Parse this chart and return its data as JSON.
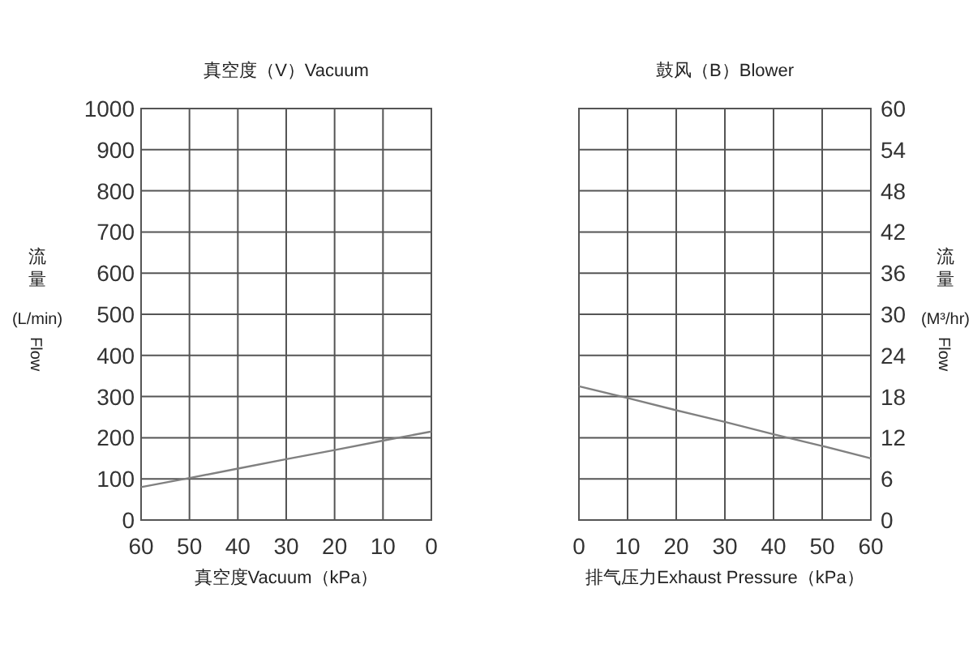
{
  "chart_data": [
    {
      "type": "line",
      "title": "真空度（V）Vacuum",
      "xlabel": "真空度Vacuum（kPa）",
      "ylabel": "流量\n(L/min)\nFlow",
      "xlim": [
        60,
        0
      ],
      "xticks": [
        60,
        50,
        40,
        30,
        20,
        10,
        0
      ],
      "ylim": [
        0,
        1000
      ],
      "yticks": [
        0,
        100,
        200,
        300,
        400,
        500,
        600,
        700,
        800,
        900,
        1000
      ],
      "grid": true,
      "series": [
        {
          "color": "#808080",
          "x": [
            60,
            50,
            40,
            30,
            20,
            10,
            0
          ],
          "values": [
            80,
            102,
            125,
            148,
            170,
            193,
            215
          ]
        }
      ]
    },
    {
      "type": "line",
      "title": "鼓风（B）Blower",
      "xlabel": "排气压力Exhaust Pressure（kPa）",
      "y2label": "流量\n(M³/hr)\nFlow",
      "xlim": [
        0,
        60
      ],
      "xticks": [
        0,
        10,
        20,
        30,
        40,
        50,
        60
      ],
      "y2lim": [
        0,
        60
      ],
      "y2ticks": [
        0,
        6,
        12,
        18,
        24,
        30,
        36,
        42,
        48,
        54,
        60
      ],
      "grid": true,
      "series": [
        {
          "color": "#808080",
          "axis": "y2",
          "x": [
            0,
            10,
            20,
            30,
            40,
            50,
            60
          ],
          "values": [
            19.5,
            17.8,
            16,
            14.3,
            12.5,
            10.8,
            9
          ]
        }
      ]
    }
  ]
}
